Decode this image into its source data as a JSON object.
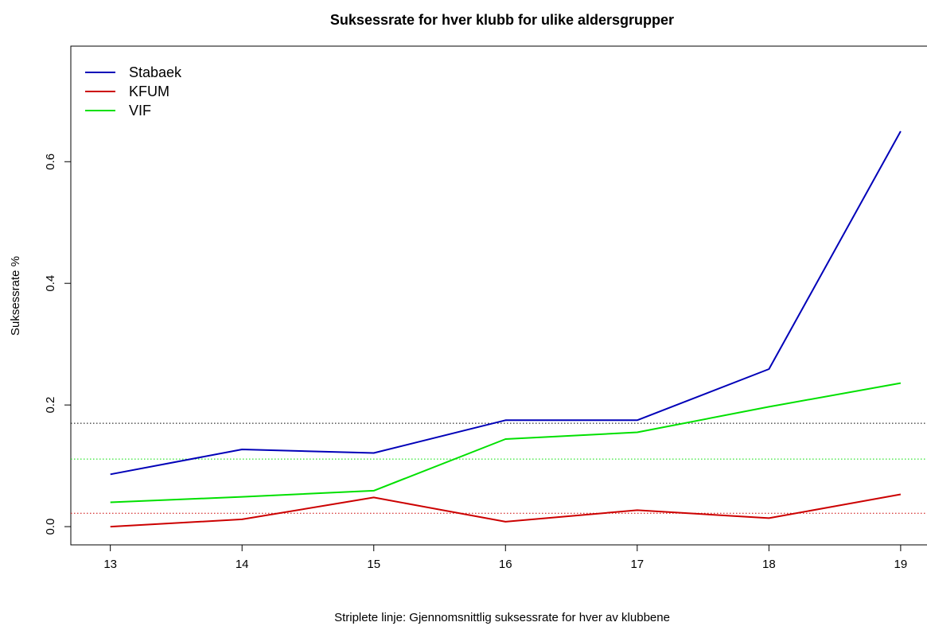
{
  "chart_data": {
    "type": "line",
    "title": "Suksessrate for hver klubb for ulike aldersgrupper",
    "xlabel": "Striplete linje: Gjennomsnittlig suksessrate for hver av klubbene",
    "ylabel": "Suksessrate %",
    "x": [
      13,
      14,
      15,
      16,
      17,
      18,
      19
    ],
    "x_tick_labels": [
      "13",
      "14",
      "15",
      "16",
      "17",
      "18",
      "19"
    ],
    "y_ticks": [
      0.0,
      0.2,
      0.4,
      0.6
    ],
    "y_tick_labels": [
      "0.0",
      "0.2",
      "0.4",
      "0.6"
    ],
    "xlim": [
      12.7,
      19.2
    ],
    "ylim": [
      -0.03,
      0.79
    ],
    "grid": false,
    "legend_position": "top-left",
    "series": [
      {
        "name": "Stabaek",
        "color": "#0000B8",
        "values": [
          0.086,
          0.127,
          0.121,
          0.175,
          0.175,
          0.259,
          0.65
        ]
      },
      {
        "name": "KFUM",
        "color": "#CC0000",
        "values": [
          0.0,
          0.012,
          0.048,
          0.008,
          0.027,
          0.014,
          0.053
        ]
      },
      {
        "name": "VIF",
        "color": "#00E000",
        "values": [
          0.04,
          0.049,
          0.059,
          0.144,
          0.155,
          0.197,
          0.236
        ]
      }
    ],
    "reference_lines": [
      {
        "name": "Stabaek",
        "y": 0.17,
        "color": "#000000",
        "style": "dotted"
      },
      {
        "name": "VIF",
        "y": 0.111,
        "color": "#00E000",
        "style": "dotted"
      },
      {
        "name": "KFUM",
        "y": 0.022,
        "color": "#CC0000",
        "style": "dotted"
      }
    ]
  }
}
